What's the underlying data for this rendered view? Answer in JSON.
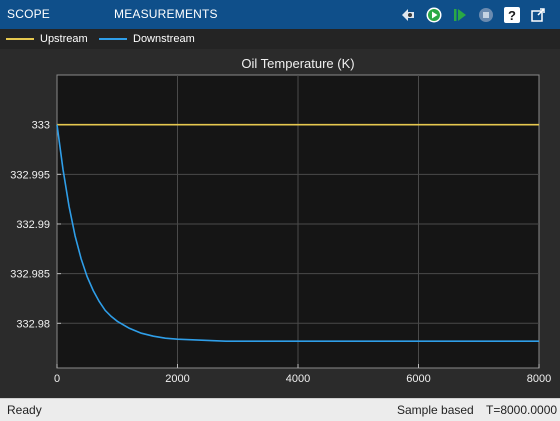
{
  "toolbar": {
    "tabs": [
      {
        "label": "SCOPE"
      },
      {
        "label": "MEASUREMENTS"
      }
    ],
    "icons": [
      "arrow-step-back-icon",
      "run-icon",
      "step-forward-icon",
      "stop-icon",
      "help-icon",
      "undock-icon"
    ]
  },
  "legend": {
    "items": [
      {
        "label": "Upstream",
        "color": "#e6c84f"
      },
      {
        "label": "Downstream",
        "color": "#2f9ee8"
      }
    ]
  },
  "chart_data": {
    "type": "line",
    "title": "Oil Temperature (K)",
    "xlim": [
      0,
      8000
    ],
    "ylim": [
      332.9755,
      333.005
    ],
    "xticks": [
      0,
      2000,
      4000,
      6000,
      8000
    ],
    "yticks": [
      333,
      332.995,
      332.99,
      332.985,
      332.98
    ],
    "ytick_labels": [
      "333",
      "332.995",
      "332.99",
      "332.985",
      "332.98"
    ],
    "grid": true,
    "series": [
      {
        "name": "Upstream",
        "color": "#e6c84f",
        "x": [
          0,
          8000
        ],
        "y": [
          333.0,
          333.0
        ]
      },
      {
        "name": "Downstream",
        "color": "#2f9ee8",
        "x": [
          0,
          100,
          200,
          300,
          400,
          500,
          600,
          700,
          800,
          900,
          1000,
          1200,
          1400,
          1600,
          1800,
          2000,
          2400,
          2800,
          3200,
          3600,
          4000,
          5000,
          6000,
          7000,
          8000
        ],
        "y": [
          333.0,
          332.9955,
          332.9918,
          332.9888,
          332.9865,
          332.9847,
          332.9833,
          332.9822,
          332.9813,
          332.9807,
          332.9802,
          332.9795,
          332.979,
          332.9787,
          332.9785,
          332.9784,
          332.9783,
          332.9782,
          332.9782,
          332.9782,
          332.9782,
          332.9782,
          332.9782,
          332.9782,
          332.9782
        ]
      }
    ]
  },
  "status": {
    "state": "Ready",
    "mode": "Sample based",
    "time": "T=8000.0000"
  }
}
